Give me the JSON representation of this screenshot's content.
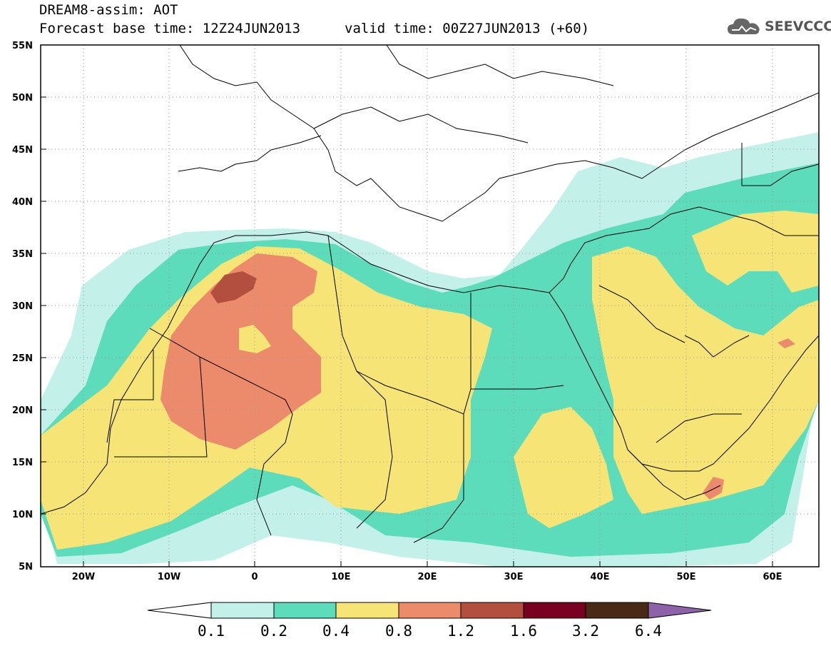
{
  "title": {
    "model": "DREAM8-assim: AOT",
    "base_time": "Forecast base time: 12Z24JUN2013",
    "valid_time": "valid time: 00Z27JUN2013 (+60)"
  },
  "logo": {
    "text": "SEEVCCC",
    "icon": "cloud-icon",
    "color": "#555555"
  },
  "map": {
    "lat_labels": [
      "55N",
      "50N",
      "45N",
      "40N",
      "35N",
      "30N",
      "25N",
      "20N",
      "15N",
      "10N",
      "5N"
    ],
    "lon_labels": [
      "20W",
      "10W",
      "0",
      "10E",
      "20E",
      "30E",
      "40E",
      "50E",
      "60E"
    ],
    "lat_range": [
      5,
      55
    ],
    "lon_range": [
      -25,
      65
    ],
    "gridlines": "dotted"
  },
  "colorbar": {
    "labels": [
      "0.1",
      "0.2",
      "0.4",
      "0.8",
      "1.2",
      "1.6",
      "3.2",
      "6.4"
    ],
    "colors": [
      "#ffffff",
      "#c4f0ea",
      "#5ddcbc",
      "#f6e477",
      "#eb8b6b",
      "#b24f3e",
      "#7a0021",
      "#4a2a17",
      "#8e62a8"
    ]
  }
}
